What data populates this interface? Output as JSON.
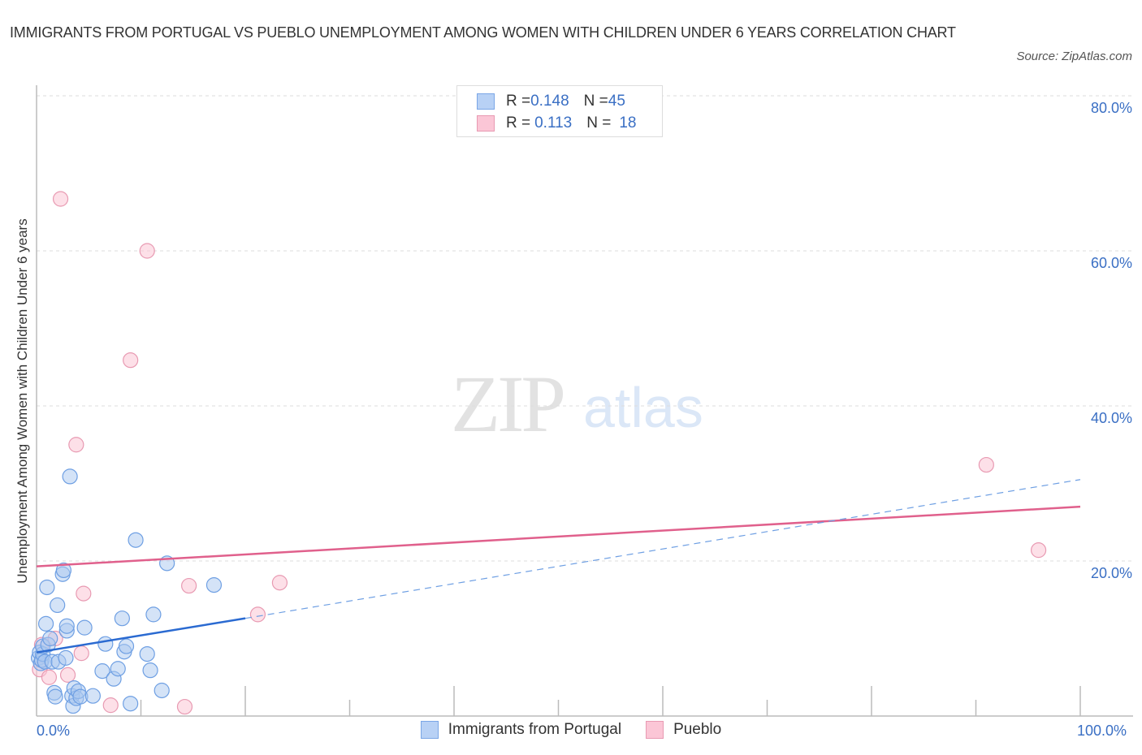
{
  "header": {
    "title": "IMMIGRANTS FROM PORTUGAL VS PUEBLO UNEMPLOYMENT AMONG WOMEN WITH CHILDREN UNDER 6 YEARS CORRELATION CHART",
    "source": "Source: ZipAtlas.com"
  },
  "watermark": {
    "zip": "ZIP",
    "atlas": "atlas"
  },
  "legend": {
    "rows": [
      {
        "r_label": "R = ",
        "r_value": "0.148",
        "n_label": "N = ",
        "n_value": "45",
        "color": "#b8d1f5",
        "border": "#7aa6e6"
      },
      {
        "r_label": "R = ",
        "r_value": "0.113",
        "n_label": "N = ",
        "n_value": "18",
        "color": "#fbc6d6",
        "border": "#e89ab2"
      }
    ]
  },
  "bottom_legend": {
    "items": [
      {
        "label": "Immigrants from Portugal",
        "color": "#b8d1f5",
        "border": "#7aa6e6"
      },
      {
        "label": "Pueblo",
        "color": "#fbc6d6",
        "border": "#e89ab2"
      }
    ]
  },
  "chart_data": {
    "type": "scatter",
    "title": "IMMIGRANTS FROM PORTUGAL VS PUEBLO UNEMPLOYMENT AMONG WOMEN WITH CHILDREN UNDER 6 YEARS CORRELATION CHART",
    "xlabel": "",
    "ylabel": "Unemployment Among Women with Children Under 6 years",
    "xlim": [
      0,
      100
    ],
    "ylim": [
      0,
      80
    ],
    "x_tick_labels": [
      "0.0%",
      "100.0%"
    ],
    "y_tick_labels": [
      "20.0%",
      "40.0%",
      "60.0%",
      "80.0%"
    ],
    "y_ticks": [
      20,
      40,
      60,
      80
    ],
    "grid": "horizontal dashed",
    "legend_position": "bottom-center",
    "series": [
      {
        "name": "Immigrants from Portugal",
        "color": "#7aa6e6",
        "R": 0.148,
        "N": 45,
        "trend": {
          "x0": 0,
          "y0": 8.2,
          "x1": 20,
          "y1": 12.6,
          "dashed_to_x": 100,
          "dashed_to_y": 30.5
        },
        "points": [
          [
            0.2,
            7.5
          ],
          [
            0.3,
            8.2
          ],
          [
            0.4,
            6.8
          ],
          [
            0.5,
            7.2
          ],
          [
            0.6,
            8.0
          ],
          [
            0.6,
            9.0
          ],
          [
            0.8,
            7.0
          ],
          [
            0.9,
            11.9
          ],
          [
            1.0,
            16.6
          ],
          [
            1.1,
            9.2
          ],
          [
            1.3,
            10.0
          ],
          [
            1.5,
            7.0
          ],
          [
            1.7,
            3.0
          ],
          [
            1.8,
            2.5
          ],
          [
            2.0,
            14.3
          ],
          [
            2.1,
            7.0
          ],
          [
            2.5,
            18.3
          ],
          [
            2.6,
            18.8
          ],
          [
            2.8,
            7.5
          ],
          [
            2.9,
            11.0
          ],
          [
            2.9,
            11.6
          ],
          [
            3.2,
            30.9
          ],
          [
            3.4,
            2.6
          ],
          [
            3.5,
            1.3
          ],
          [
            3.6,
            3.6
          ],
          [
            3.8,
            2.3
          ],
          [
            4.0,
            3.2
          ],
          [
            4.2,
            2.5
          ],
          [
            4.6,
            11.4
          ],
          [
            5.4,
            2.6
          ],
          [
            6.3,
            5.8
          ],
          [
            6.6,
            9.3
          ],
          [
            7.4,
            4.8
          ],
          [
            7.8,
            6.1
          ],
          [
            8.2,
            12.6
          ],
          [
            8.4,
            8.3
          ],
          [
            8.6,
            9.0
          ],
          [
            9.0,
            1.6
          ],
          [
            9.5,
            22.7
          ],
          [
            10.6,
            8.0
          ],
          [
            10.9,
            5.9
          ],
          [
            11.2,
            13.1
          ],
          [
            12.0,
            3.3
          ],
          [
            12.5,
            19.7
          ],
          [
            17.0,
            16.9
          ]
        ]
      },
      {
        "name": "Pueblo",
        "color": "#e89ab2",
        "R": 0.113,
        "N": 18,
        "trend": {
          "x0": 0,
          "y0": 19.3,
          "x1": 100,
          "y1": 27.0
        },
        "points": [
          [
            0.3,
            6.0
          ],
          [
            0.5,
            9.2
          ],
          [
            1.2,
            5.0
          ],
          [
            1.8,
            10.0
          ],
          [
            2.3,
            66.7
          ],
          [
            3.0,
            5.3
          ],
          [
            3.8,
            35.0
          ],
          [
            4.3,
            8.1
          ],
          [
            4.5,
            15.8
          ],
          [
            7.1,
            1.4
          ],
          [
            9.0,
            45.9
          ],
          [
            10.6,
            60.0
          ],
          [
            14.2,
            1.2
          ],
          [
            14.6,
            16.8
          ],
          [
            21.2,
            13.1
          ],
          [
            23.3,
            17.2
          ],
          [
            91.0,
            32.4
          ],
          [
            96.0,
            21.4
          ]
        ]
      }
    ]
  }
}
